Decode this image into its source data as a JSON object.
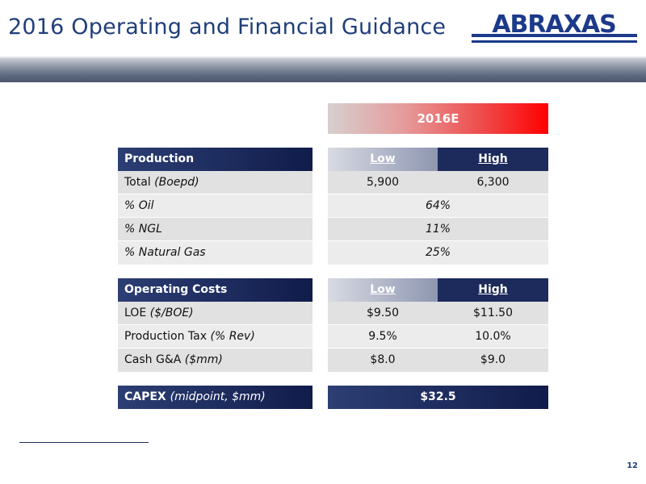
{
  "header": {
    "title": "2016 Operating and Financial Guidance",
    "logo_text": "ABRAXAS"
  },
  "guidance": {
    "period_label": "2016E",
    "production": {
      "heading": "Production",
      "col_low": "Low",
      "col_high": "High",
      "rows": [
        {
          "label": "Total ",
          "label_italic": "(Boepd)",
          "low": "5,900",
          "high": "6,300"
        },
        {
          "label": "",
          "label_italic": "% Oil",
          "merged": "64%"
        },
        {
          "label": "",
          "label_italic": "% NGL",
          "merged": "11%"
        },
        {
          "label": "",
          "label_italic": "% Natural Gas",
          "merged": "25%"
        }
      ]
    },
    "operating_costs": {
      "heading": "Operating Costs",
      "col_low": "Low",
      "col_high": "High",
      "rows": [
        {
          "label": "LOE ",
          "label_italic": "($/BOE)",
          "low": "$9.50",
          "high": "$11.50"
        },
        {
          "label": "Production Tax ",
          "label_italic": "(% Rev)",
          "low": "9.5%",
          "high": "10.0%"
        },
        {
          "label": "Cash G&A ",
          "label_italic": "($mm)",
          "low": "$8.0",
          "high": "$9.0"
        }
      ]
    },
    "capex": {
      "label": "CAPEX",
      "label_italic": "(midpoint, $mm)",
      "value": "$32.5"
    }
  },
  "footer": {
    "page_number": "12"
  },
  "colors": {
    "title": "#1f3f7a",
    "navy": "#1c2a5c",
    "accent_red": "#ff0000",
    "table_gray": "#e1e1e1"
  }
}
